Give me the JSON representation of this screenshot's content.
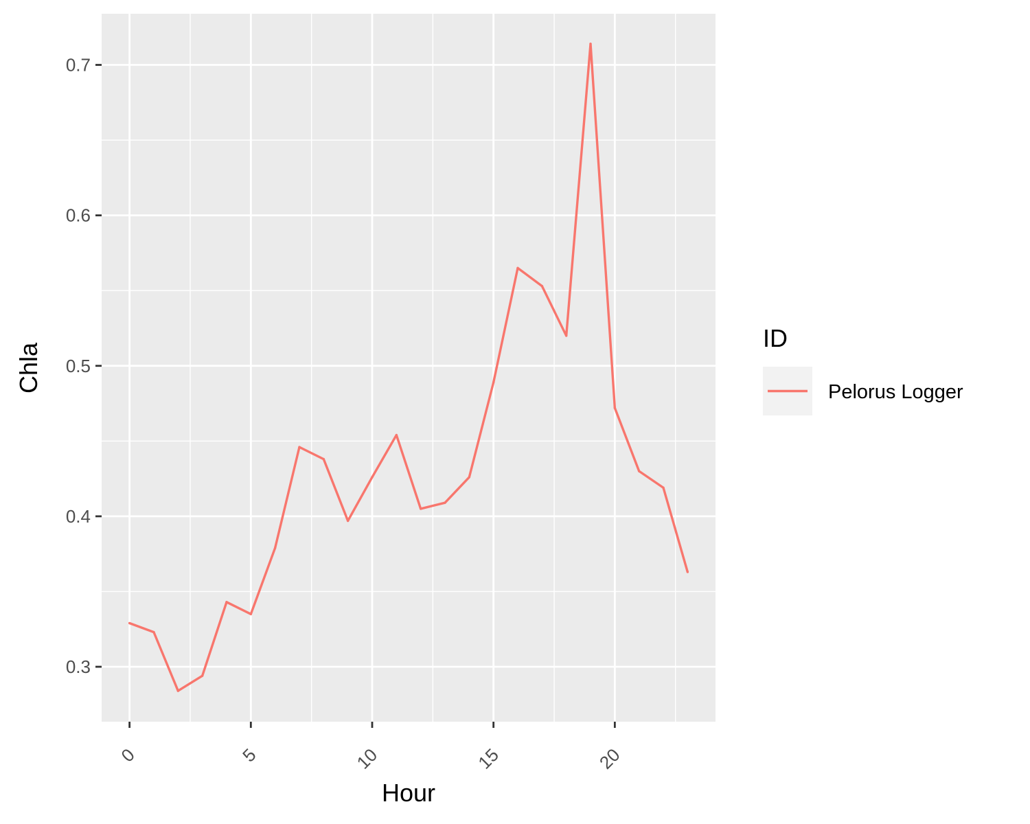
{
  "chart_data": {
    "type": "line",
    "xlabel": "Hour",
    "ylabel": "Chla",
    "xlim": [
      -1.15,
      24.15
    ],
    "ylim": [
      0.2635,
      0.734
    ],
    "x_ticks": [
      0,
      5,
      10,
      15,
      20
    ],
    "x_tick_labels": [
      "0",
      "5",
      "10",
      "15",
      "20"
    ],
    "x_minor_ticks": [
      2.5,
      7.5,
      12.5,
      17.5,
      22.5
    ],
    "y_ticks": [
      0.3,
      0.4,
      0.5,
      0.6,
      0.7
    ],
    "y_tick_labels": [
      "0.3",
      "0.4",
      "0.5",
      "0.6",
      "0.7"
    ],
    "y_minor_ticks": [
      0.35,
      0.45,
      0.55,
      0.65
    ],
    "grid": true,
    "legend": {
      "title": "ID",
      "position": "right"
    },
    "series": [
      {
        "name": "Pelorus Logger",
        "color": "#F8766D",
        "x": [
          0,
          1,
          2,
          3,
          4,
          5,
          6,
          7,
          8,
          9,
          10,
          11,
          12,
          13,
          14,
          15,
          16,
          17,
          18,
          19,
          20,
          21,
          22,
          23
        ],
        "values": [
          0.329,
          0.323,
          0.284,
          0.294,
          0.343,
          0.335,
          0.379,
          0.446,
          0.438,
          0.397,
          0.426,
          0.454,
          0.405,
          0.409,
          0.426,
          0.489,
          0.565,
          0.553,
          0.52,
          0.714,
          0.472,
          0.43,
          0.419,
          0.363
        ]
      }
    ]
  }
}
